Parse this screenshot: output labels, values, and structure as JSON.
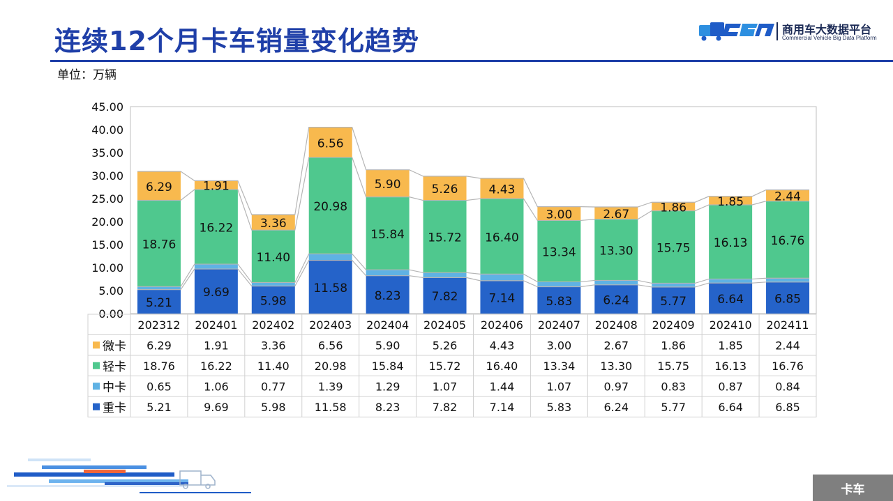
{
  "header": {
    "title": "连续12个月卡车销量变化趋势",
    "unit": "单位：万辆",
    "logo_cn": "商用车大数据平台",
    "logo_en": "Commercial Vehicle Big Data Platform"
  },
  "footer": {
    "tag": "卡车"
  },
  "colors": {
    "title": "#1f3fa8",
    "heavy": "#2563c9",
    "medium": "#5fb2e4",
    "light": "#4fc88e",
    "micro": "#f8b94e"
  },
  "chart_data": {
    "type": "bar",
    "stacked": true,
    "categories": [
      "202312",
      "202401",
      "202402",
      "202403",
      "202404",
      "202405",
      "202406",
      "202407",
      "202408",
      "202409",
      "202410",
      "202411"
    ],
    "series": [
      {
        "name": "重卡",
        "color": "#2563c9",
        "values": [
          5.21,
          9.69,
          5.98,
          11.58,
          8.23,
          7.82,
          7.14,
          5.83,
          6.24,
          5.77,
          6.64,
          6.85
        ]
      },
      {
        "name": "中卡",
        "color": "#5fb2e4",
        "values": [
          0.65,
          1.06,
          0.77,
          1.39,
          1.29,
          1.07,
          1.44,
          1.07,
          0.97,
          0.83,
          0.87,
          0.84
        ]
      },
      {
        "name": "轻卡",
        "color": "#4fc88e",
        "values": [
          18.76,
          16.22,
          11.4,
          20.98,
          15.84,
          15.72,
          16.4,
          13.34,
          13.3,
          15.75,
          16.13,
          16.76
        ]
      },
      {
        "name": "微卡",
        "color": "#f8b94e",
        "values": [
          6.29,
          1.91,
          3.36,
          6.56,
          5.9,
          5.26,
          4.43,
          3.0,
          2.67,
          1.86,
          1.85,
          2.44
        ]
      }
    ],
    "table_rows": [
      "微卡",
      "轻卡",
      "中卡",
      "重卡"
    ],
    "ylim": [
      0,
      45
    ],
    "yticks": [
      "0.00",
      "5.00",
      "10.00",
      "15.00",
      "20.00",
      "25.00",
      "30.00",
      "35.00",
      "40.00",
      "45.00"
    ],
    "xlabel": "",
    "ylabel": "",
    "data_labels": [
      "重卡",
      "轻卡",
      "微卡"
    ],
    "legend": "data-table"
  }
}
